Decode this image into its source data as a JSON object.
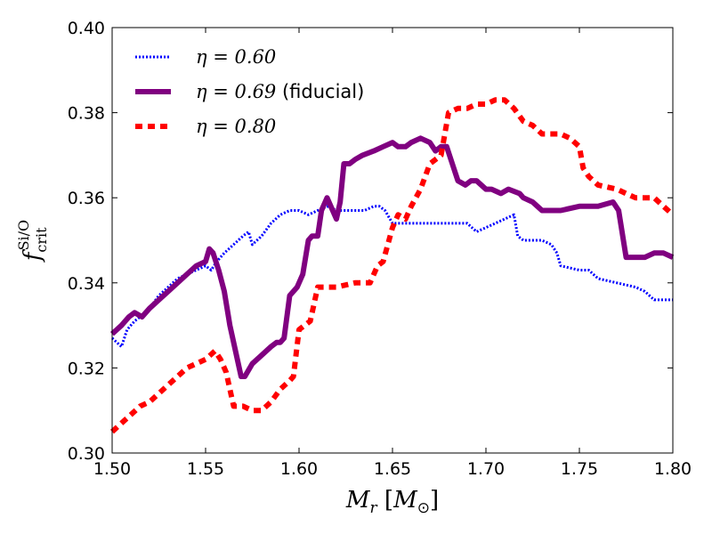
{
  "chart_data": {
    "type": "line",
    "title": "",
    "xlabel": "M_r [M_⊙]",
    "ylabel": "f_crit^Si/O",
    "xlim": [
      1.5,
      1.8
    ],
    "ylim": [
      0.3,
      0.4
    ],
    "xticks": [
      1.5,
      1.55,
      1.6,
      1.65,
      1.7,
      1.75,
      1.8
    ],
    "xtick_labels": [
      "1.50",
      "1.55",
      "1.60",
      "1.65",
      "1.70",
      "1.75",
      "1.80"
    ],
    "yticks": [
      0.3,
      0.32,
      0.34,
      0.36,
      0.38,
      0.4
    ],
    "ytick_labels": [
      "0.30",
      "0.32",
      "0.34",
      "0.36",
      "0.38",
      "0.40"
    ],
    "grid": false,
    "legend_position": "top-left",
    "series": [
      {
        "name": "η = 0.60",
        "math": "η = 0.60",
        "suffix": "",
        "color": "#0000ff",
        "style": "dotted",
        "x": [
          1.5,
          1.505,
          1.508,
          1.512,
          1.515,
          1.52,
          1.525,
          1.53,
          1.535,
          1.54,
          1.545,
          1.55,
          1.553,
          1.556,
          1.56,
          1.565,
          1.57,
          1.573,
          1.575,
          1.58,
          1.585,
          1.59,
          1.595,
          1.6,
          1.605,
          1.61,
          1.615,
          1.62,
          1.625,
          1.63,
          1.635,
          1.64,
          1.643,
          1.646,
          1.65,
          1.66,
          1.67,
          1.68,
          1.69,
          1.695,
          1.7,
          1.705,
          1.71,
          1.715,
          1.717,
          1.72,
          1.73,
          1.735,
          1.738,
          1.74,
          1.75,
          1.755,
          1.76,
          1.77,
          1.78,
          1.785,
          1.79,
          1.8
        ],
        "y": [
          0.327,
          0.325,
          0.329,
          0.331,
          0.332,
          0.334,
          0.337,
          0.339,
          0.341,
          0.342,
          0.343,
          0.344,
          0.343,
          0.345,
          0.347,
          0.349,
          0.351,
          0.352,
          0.349,
          0.351,
          0.354,
          0.356,
          0.357,
          0.357,
          0.356,
          0.357,
          0.358,
          0.357,
          0.357,
          0.357,
          0.357,
          0.358,
          0.358,
          0.357,
          0.354,
          0.354,
          0.354,
          0.354,
          0.354,
          0.352,
          0.353,
          0.354,
          0.355,
          0.356,
          0.351,
          0.35,
          0.35,
          0.349,
          0.347,
          0.344,
          0.343,
          0.343,
          0.341,
          0.34,
          0.339,
          0.338,
          0.336,
          0.336
        ]
      },
      {
        "name": "η = 0.69 (fiducial)",
        "math": "η = 0.69",
        "suffix": " (fiducial)",
        "color": "#800080",
        "style": "solid",
        "x": [
          1.5,
          1.505,
          1.509,
          1.512,
          1.516,
          1.52,
          1.525,
          1.53,
          1.535,
          1.54,
          1.545,
          1.55,
          1.552,
          1.554,
          1.557,
          1.56,
          1.563,
          1.566,
          1.569,
          1.571,
          1.575,
          1.58,
          1.585,
          1.588,
          1.59,
          1.592,
          1.595,
          1.597,
          1.599,
          1.602,
          1.605,
          1.607,
          1.61,
          1.612,
          1.615,
          1.618,
          1.62,
          1.622,
          1.624,
          1.627,
          1.63,
          1.634,
          1.64,
          1.645,
          1.65,
          1.653,
          1.657,
          1.66,
          1.665,
          1.67,
          1.673,
          1.676,
          1.679,
          1.682,
          1.685,
          1.689,
          1.692,
          1.695,
          1.7,
          1.703,
          1.708,
          1.712,
          1.718,
          1.72,
          1.725,
          1.73,
          1.74,
          1.75,
          1.76,
          1.768,
          1.771,
          1.775,
          1.78,
          1.785,
          1.79,
          1.795,
          1.8
        ],
        "y": [
          0.328,
          0.33,
          0.332,
          0.333,
          0.332,
          0.334,
          0.336,
          0.338,
          0.34,
          0.342,
          0.344,
          0.345,
          0.348,
          0.347,
          0.343,
          0.338,
          0.33,
          0.324,
          0.318,
          0.318,
          0.321,
          0.323,
          0.325,
          0.326,
          0.326,
          0.327,
          0.337,
          0.338,
          0.339,
          0.342,
          0.35,
          0.351,
          0.351,
          0.357,
          0.36,
          0.357,
          0.355,
          0.359,
          0.368,
          0.368,
          0.369,
          0.37,
          0.371,
          0.372,
          0.373,
          0.372,
          0.372,
          0.373,
          0.374,
          0.373,
          0.371,
          0.372,
          0.372,
          0.368,
          0.364,
          0.363,
          0.364,
          0.364,
          0.362,
          0.362,
          0.361,
          0.362,
          0.361,
          0.36,
          0.359,
          0.357,
          0.357,
          0.358,
          0.358,
          0.359,
          0.357,
          0.346,
          0.346,
          0.346,
          0.347,
          0.347,
          0.346
        ]
      },
      {
        "name": "η = 0.80",
        "math": "η = 0.80",
        "suffix": "",
        "color": "#ff0000",
        "style": "dashed",
        "x": [
          1.5,
          1.505,
          1.51,
          1.515,
          1.52,
          1.525,
          1.53,
          1.535,
          1.54,
          1.545,
          1.55,
          1.555,
          1.558,
          1.561,
          1.565,
          1.57,
          1.575,
          1.58,
          1.585,
          1.59,
          1.595,
          1.597,
          1.6,
          1.603,
          1.606,
          1.61,
          1.62,
          1.63,
          1.638,
          1.64,
          1.642,
          1.645,
          1.65,
          1.653,
          1.657,
          1.66,
          1.665,
          1.67,
          1.673,
          1.676,
          1.68,
          1.685,
          1.69,
          1.695,
          1.7,
          1.705,
          1.71,
          1.715,
          1.72,
          1.725,
          1.73,
          1.735,
          1.74,
          1.745,
          1.75,
          1.752,
          1.755,
          1.76,
          1.77,
          1.775,
          1.78,
          1.785,
          1.79,
          1.795,
          1.8
        ],
        "y": [
          0.305,
          0.307,
          0.309,
          0.311,
          0.312,
          0.314,
          0.316,
          0.318,
          0.32,
          0.321,
          0.322,
          0.324,
          0.322,
          0.319,
          0.311,
          0.311,
          0.31,
          0.31,
          0.312,
          0.315,
          0.317,
          0.318,
          0.329,
          0.33,
          0.331,
          0.339,
          0.339,
          0.34,
          0.34,
          0.342,
          0.344,
          0.345,
          0.353,
          0.356,
          0.355,
          0.358,
          0.362,
          0.368,
          0.369,
          0.37,
          0.38,
          0.381,
          0.381,
          0.382,
          0.382,
          0.383,
          0.383,
          0.381,
          0.378,
          0.377,
          0.375,
          0.375,
          0.375,
          0.374,
          0.372,
          0.367,
          0.365,
          0.363,
          0.362,
          0.361,
          0.36,
          0.36,
          0.36,
          0.358,
          0.356
        ]
      }
    ]
  }
}
